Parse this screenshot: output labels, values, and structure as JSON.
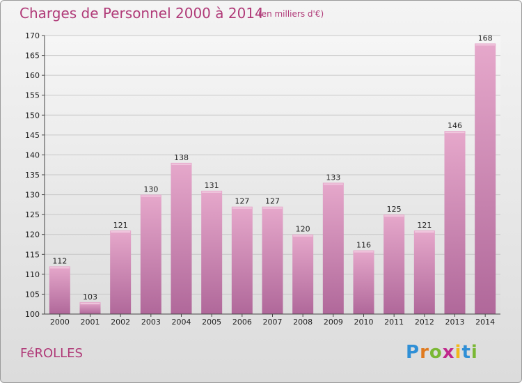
{
  "title": "Charges de Personnel 2000 à 2014",
  "subtitle": "(en milliers d'€)",
  "commune": "FéROLLES",
  "logo": {
    "letters": [
      "P",
      "r",
      "o",
      "x",
      "i",
      "t",
      "i"
    ],
    "colors": [
      "#2f8fd6",
      "#e07a1f",
      "#7ab834",
      "#c0288c",
      "#f2b81b",
      "#2f8fd6",
      "#7ab834"
    ]
  },
  "chart_data": {
    "type": "bar",
    "title": "Charges de Personnel 2000 à 2014",
    "subtitle": "(en milliers d'€)",
    "categories": [
      "2000",
      "2001",
      "2002",
      "2003",
      "2004",
      "2005",
      "2006",
      "2007",
      "2008",
      "2009",
      "2010",
      "2011",
      "2012",
      "2013",
      "2014"
    ],
    "values": [
      112,
      103,
      121,
      130,
      138,
      131,
      127,
      127,
      120,
      133,
      116,
      125,
      121,
      146,
      168
    ],
    "ylim": [
      100,
      170
    ],
    "yticks": [
      100,
      105,
      110,
      115,
      120,
      125,
      130,
      135,
      140,
      145,
      150,
      155,
      160,
      165,
      170
    ],
    "grid": true,
    "bar_color": "#d98ab5"
  }
}
